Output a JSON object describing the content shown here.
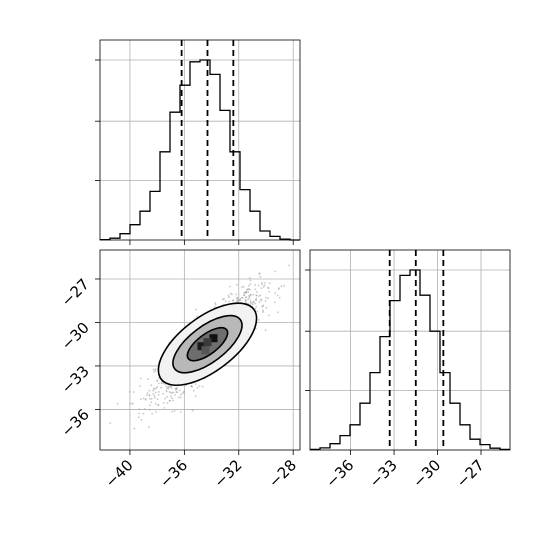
{
  "chart_data": [
    {
      "type": "histogram",
      "panel": "top-left",
      "x_ticks": [
        "−40",
        "−36",
        "−32",
        "−28"
      ],
      "xlim": [
        -42.2,
        -27.5
      ],
      "bins": [
        -42.2,
        -41.465,
        -40.73,
        -39.995,
        -39.26,
        -38.525,
        -37.79,
        -37.055,
        -36.32,
        -35.585,
        -34.85,
        -34.115,
        -33.38,
        -32.645,
        -31.91,
        -31.175,
        -30.44,
        -29.705,
        -28.97,
        -28.235,
        -27.5
      ],
      "counts": [
        0.2,
        1.0,
        3.5,
        8.5,
        16,
        27,
        49,
        71,
        86,
        99,
        100,
        92,
        72,
        49,
        28,
        16,
        5,
        2,
        0.5,
        0
      ],
      "quantiles": [
        -36.2,
        -34.3,
        -32.4
      ],
      "grid": true
    },
    {
      "type": "scatter-density",
      "panel": "bottom-left",
      "x_ticks": [
        "−40",
        "−36",
        "−32",
        "−28"
      ],
      "y_ticks": [
        "−27",
        "−30",
        "−33",
        "−36"
      ],
      "xlim": [
        -42.2,
        -27.5
      ],
      "ylim": [
        -38.8,
        -25.0
      ],
      "center": [
        -34.3,
        -31.5
      ],
      "contour_levels": [
        "inner",
        "middle",
        "outer"
      ],
      "grid": true
    },
    {
      "type": "histogram",
      "panel": "bottom-right",
      "x_ticks": [
        "−36",
        "−33",
        "−30",
        "−27"
      ],
      "xlim": [
        -38.8,
        -25.0
      ],
      "bins": [
        -38.8,
        -38.11,
        -37.42,
        -36.73,
        -36.04,
        -35.35,
        -34.66,
        -33.97,
        -33.28,
        -32.59,
        -31.9,
        -31.21,
        -30.52,
        -29.83,
        -29.14,
        -28.45,
        -27.76,
        -27.07,
        -26.38,
        -25.69,
        -25.0
      ],
      "counts": [
        0.3,
        1.2,
        3.5,
        8,
        14,
        26,
        43,
        63,
        83,
        97,
        100,
        86,
        66,
        43,
        26,
        14,
        6,
        3,
        1,
        0.3
      ],
      "quantiles": [
        -33.3,
        -31.5,
        -29.6
      ],
      "grid": true
    }
  ]
}
